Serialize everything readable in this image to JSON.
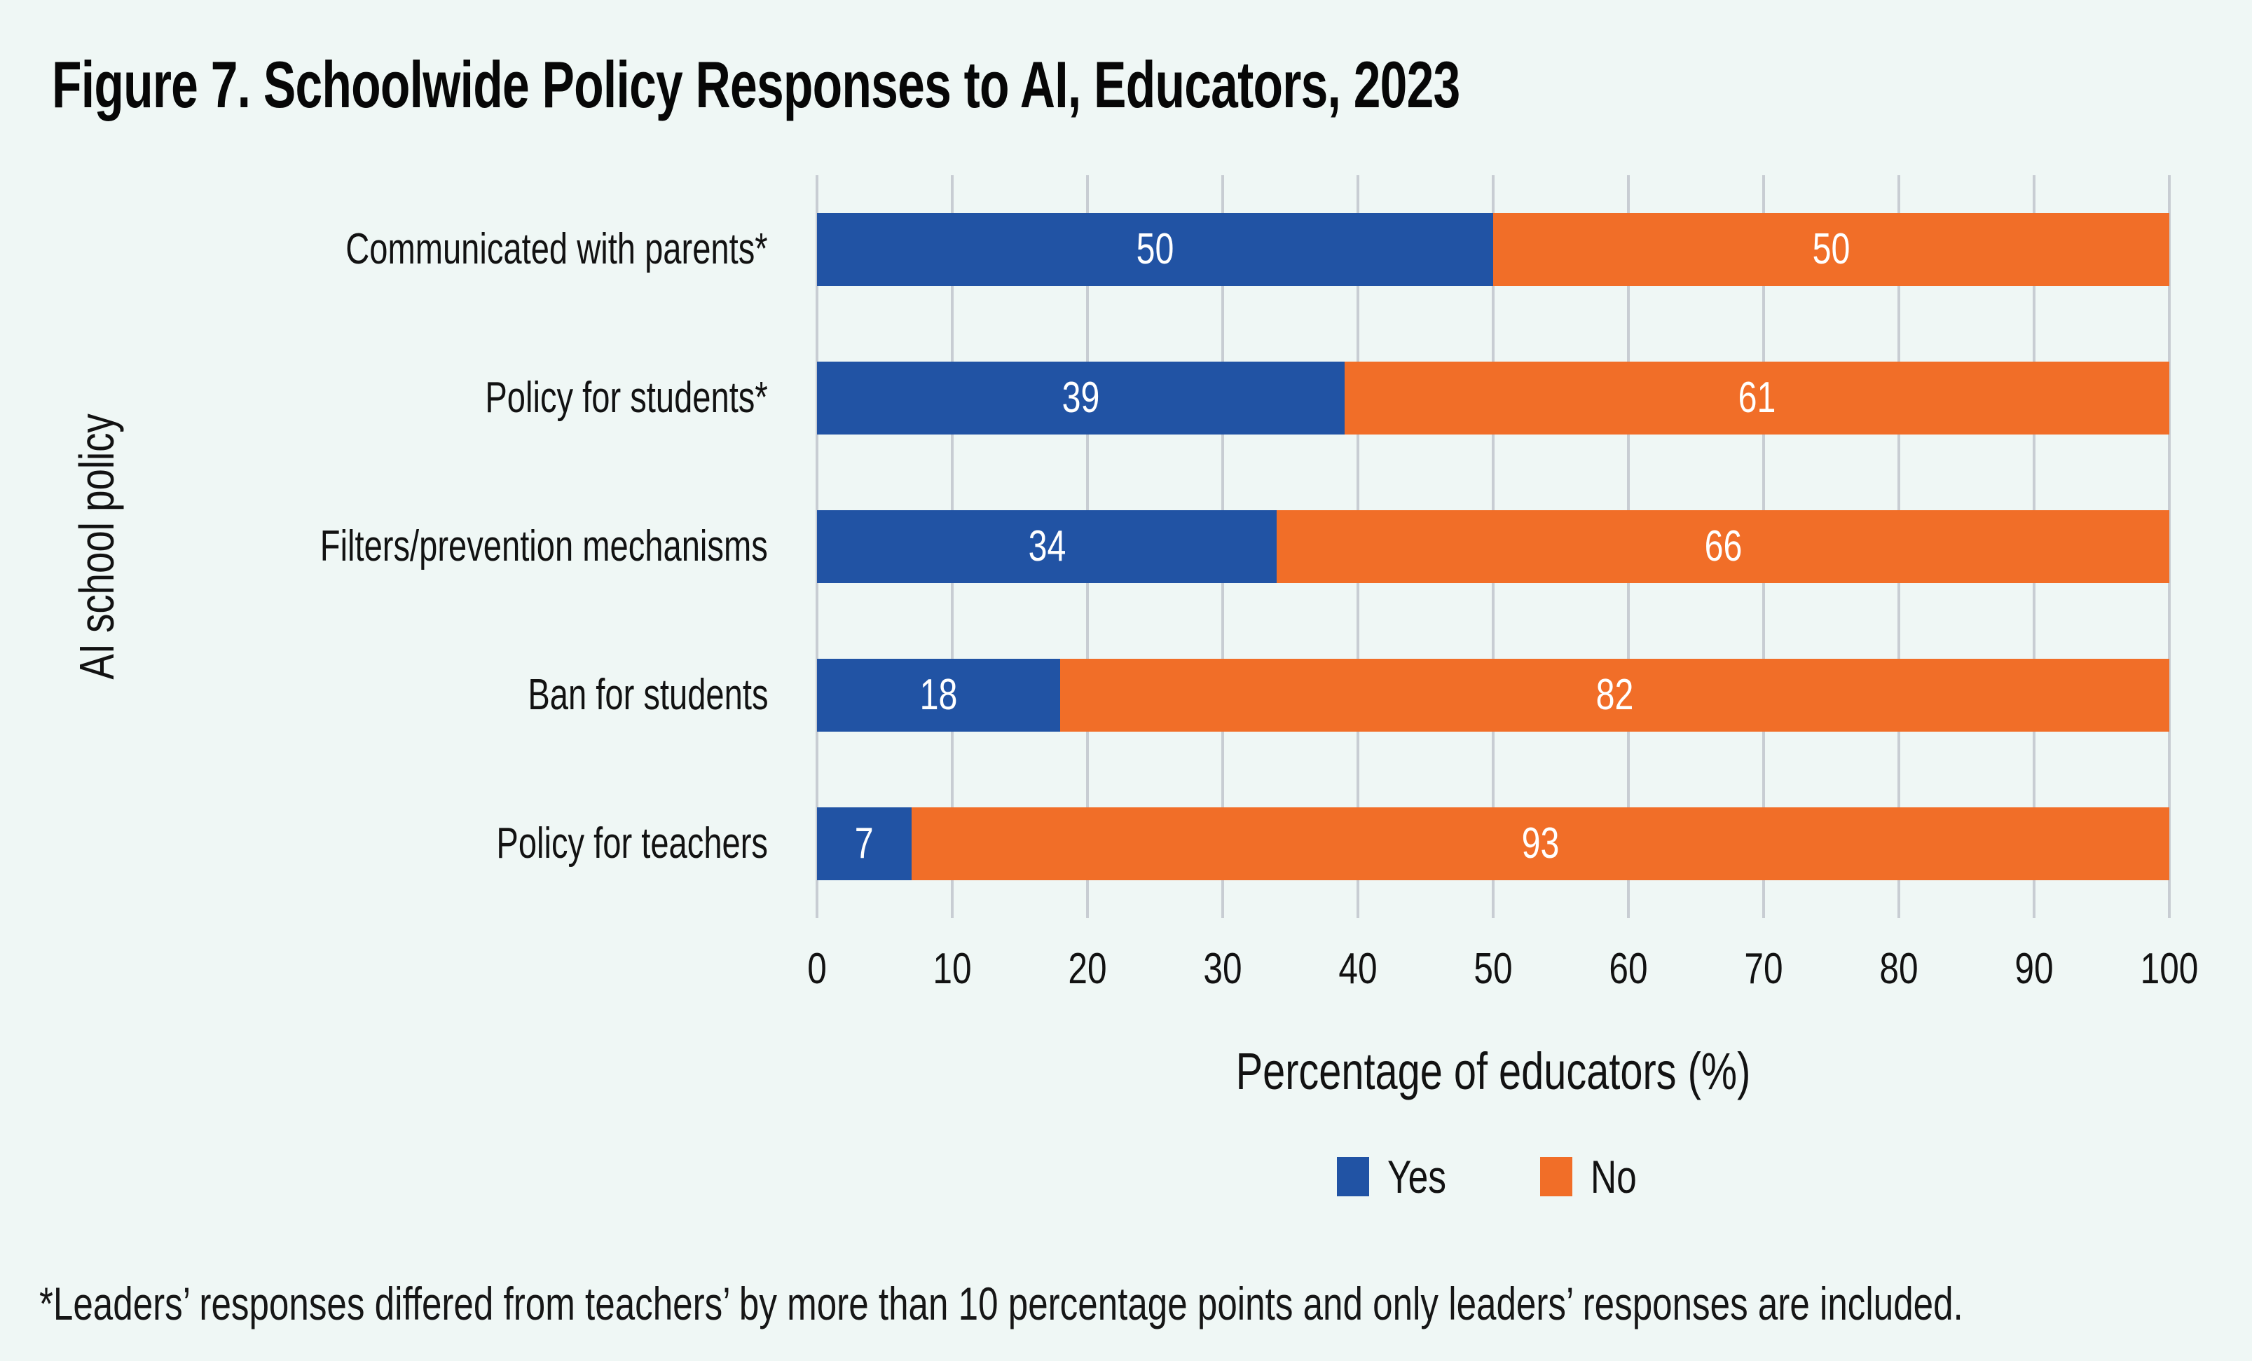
{
  "page": {
    "background": "#EFF7F5"
  },
  "title": "Figure 7. Schoolwide Policy Responses to AI, Educators, 2023",
  "footnote": "*Leaders’ responses differed from teachers’ by more than 10 percentage points and only leaders’ responses are included.",
  "chart_data": {
    "type": "bar",
    "orientation": "horizontal",
    "stacked": true,
    "title": "Figure 7. Schoolwide Policy Responses to AI, Educators, 2023",
    "categories": [
      "Communicated with parents*",
      "Policy for students*",
      "Filters/prevention mechanisms",
      "Ban for students",
      "Policy for teachers"
    ],
    "series": [
      {
        "name": "Yes",
        "color": "#2153A4",
        "values": [
          50,
          39,
          34,
          18,
          7
        ]
      },
      {
        "name": "No",
        "color": "#F16E28",
        "values": [
          50,
          61,
          66,
          82,
          93
        ]
      }
    ],
    "xlabel": "Percentage of educators (%)",
    "ylabel": "AI school policy",
    "xlim": [
      0,
      100
    ],
    "xticks": [
      0,
      10,
      20,
      30,
      40,
      50,
      60,
      70,
      80,
      90,
      100
    ],
    "grid": "vertical",
    "gridline_color": "#C8CDD3",
    "bar_label_color": "#FFFFFF",
    "legend_position": "bottom",
    "footnote": "*Leaders’ responses differed from teachers’ by more than 10 percentage points and only leaders’ responses are included."
  }
}
